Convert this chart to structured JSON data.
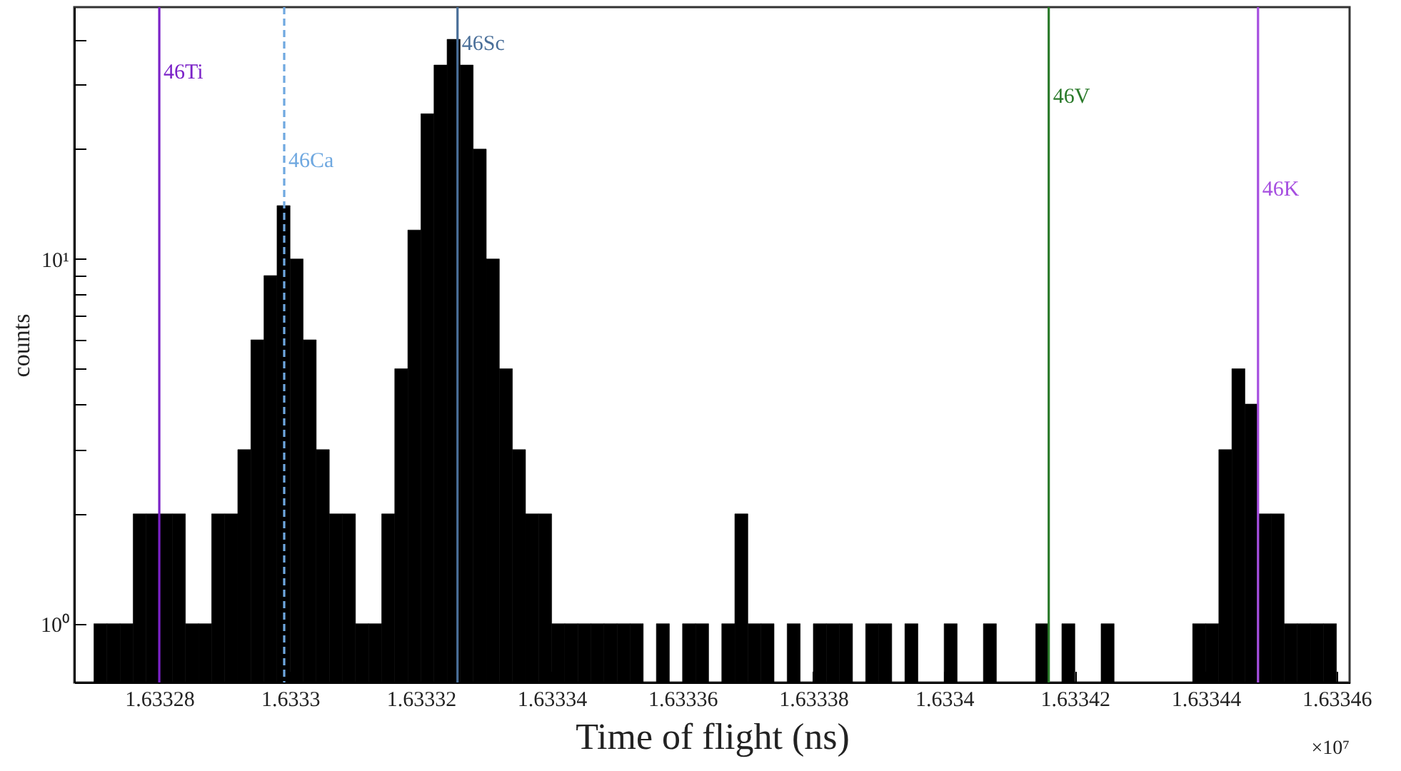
{
  "chart_data": {
    "type": "histogram",
    "xlabel": "Time of flight (ns)",
    "ylabel": "counts",
    "log": "y",
    "grid": false,
    "color": "#000000",
    "bins": [
      1.63327,
      1.633272,
      1.633274,
      1.633276,
      1.633278,
      1.63328,
      1.633282,
      1.633284,
      1.633286,
      1.633288,
      1.63329,
      1.633292,
      1.633294,
      1.633296,
      1.633298,
      1.6333,
      1.633302,
      1.633304,
      1.633306,
      1.633308,
      1.63331,
      1.633312,
      1.633314,
      1.633316,
      1.633318,
      1.63332,
      1.633322,
      1.633324,
      1.633326,
      1.633328,
      1.63333,
      1.633332,
      1.633334,
      1.633336,
      1.633338,
      1.63334,
      1.633342,
      1.633344,
      1.633346,
      1.633348,
      1.63335,
      1.633352,
      1.633354,
      1.633356,
      1.633358,
      1.63336,
      1.633362,
      1.633364,
      1.633366,
      1.633368,
      1.63337,
      1.633372,
      1.633374,
      1.633376,
      1.633378,
      1.63338,
      1.633382,
      1.633384,
      1.633386,
      1.633388,
      1.63339,
      1.633392,
      1.633394,
      1.633396,
      1.633398,
      1.6334,
      1.633402,
      1.633404,
      1.633406,
      1.633408,
      1.63341,
      1.633412,
      1.633414,
      1.633416,
      1.633418,
      1.63342,
      1.633422,
      1.633424,
      1.633426,
      1.633428,
      1.63343,
      1.633432,
      1.633434,
      1.633436,
      1.633438,
      1.63344,
      1.633442,
      1.633444,
      1.633446,
      1.633448,
      1.63345,
      1.633452,
      1.633454,
      1.633456,
      1.633458,
      1.63346
    ],
    "values": [
      1,
      1,
      1,
      2,
      2,
      2,
      2,
      1,
      1,
      2,
      2,
      3,
      6,
      9,
      14,
      10,
      6,
      3,
      2,
      2,
      1,
      1,
      2,
      5,
      12,
      25,
      34,
      40,
      34,
      20,
      10,
      5,
      3,
      2,
      2,
      1,
      1,
      1,
      1,
      1,
      1,
      1,
      null,
      1,
      null,
      1,
      1,
      null,
      1,
      2,
      1,
      1,
      null,
      1,
      null,
      1,
      1,
      1,
      null,
      1,
      1,
      null,
      1,
      null,
      null,
      1,
      null,
      null,
      1,
      null,
      null,
      null,
      1,
      null,
      1,
      null,
      null,
      1,
      null,
      null,
      null,
      null,
      null,
      null,
      1,
      1,
      3,
      5,
      4,
      2,
      2,
      1,
      1,
      1,
      1
    ],
    "xlim": [
      1.633267,
      1.633462
    ],
    "xticks": [
      1.63328,
      1.6333,
      1.63332,
      1.63334,
      1.63336,
      1.63338,
      1.6334,
      1.63342,
      1.63344,
      1.63346
    ],
    "ylim": [
      0.69,
      49
    ],
    "yticks": [
      {
        "value": 1,
        "label": "10⁰"
      },
      {
        "value": 2,
        "label": null
      },
      {
        "value": 3,
        "label": null
      },
      {
        "value": 4,
        "label": null
      },
      {
        "value": 5,
        "label": null
      },
      {
        "value": 6,
        "label": null
      },
      {
        "value": 7,
        "label": null
      },
      {
        "value": 8,
        "label": null
      },
      {
        "value": 9,
        "label": null
      },
      {
        "value": 10,
        "label": "10¹"
      },
      {
        "value": 20,
        "label": null
      },
      {
        "value": 30,
        "label": null
      },
      {
        "value": 40,
        "label": null
      }
    ],
    "ref_lines": [
      {
        "axis": "x",
        "value": 1.63328,
        "label": "46Ti",
        "color": "#7b22c8"
      },
      {
        "axis": "x",
        "value": 1.6332991,
        "label": "46Ca",
        "color": "#6fa8e0",
        "line_style": "dashed"
      },
      {
        "axis": "x",
        "value": 1.6333256,
        "label": "46Sc",
        "color": "#4a6f99"
      },
      {
        "axis": "x",
        "value": 1.633416,
        "label": "46V",
        "color": "#2a7a2a"
      },
      {
        "axis": "x",
        "value": 1.633448,
        "label": "46K",
        "color": "#a64fe0"
      }
    ],
    "annotations": [
      "×10⁷"
    ]
  }
}
